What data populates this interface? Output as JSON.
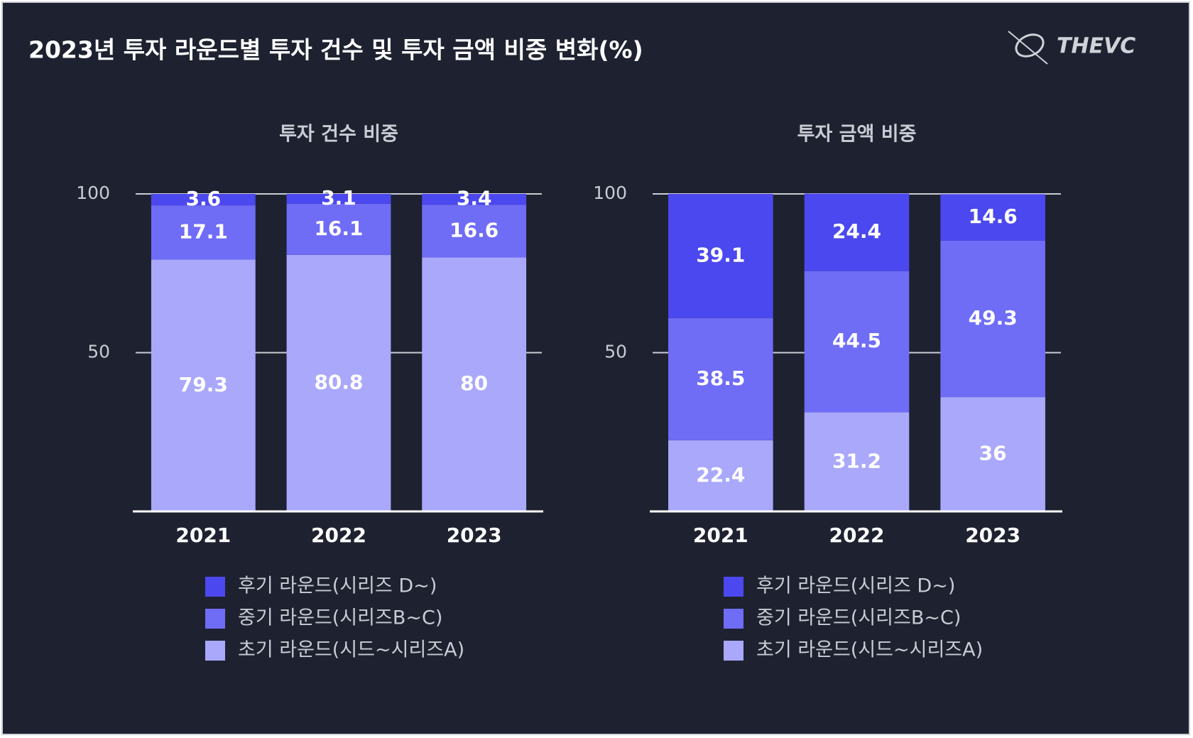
{
  "title": "2023년 투자 라운드별 투자 건수 및 투자 금액 비중 변화(%)",
  "logo": "THEVC",
  "chart_data": [
    {
      "type": "stacked_bar",
      "title": "투자 건수 비중",
      "categories": [
        "2021",
        "2022",
        "2023"
      ],
      "series": [
        {
          "name": "후기 라운드(시리즈 D~)",
          "color": "#4b48ef",
          "values": [
            3.6,
            3.1,
            3.4
          ]
        },
        {
          "name": "중기 라운드(시리즈B~C)",
          "color": "#6f6cf6",
          "values": [
            17.1,
            16.1,
            16.6
          ]
        },
        {
          "name": "초기 라운드(시드~시리즈A)",
          "color": "#a9a8fb",
          "values": [
            79.3,
            80.8,
            80
          ]
        }
      ],
      "ylim": [
        0,
        100
      ],
      "yticks": [
        50,
        100
      ],
      "grid": true
    },
    {
      "type": "stacked_bar",
      "title": "투자 금액 비중",
      "categories": [
        "2021",
        "2022",
        "2023"
      ],
      "series": [
        {
          "name": "후기 라운드(시리즈 D~)",
          "color": "#4b48ef",
          "values": [
            39.1,
            24.4,
            14.6
          ]
        },
        {
          "name": "중기 라운드(시리즈B~C)",
          "color": "#6f6cf6",
          "values": [
            38.5,
            44.5,
            49.3
          ]
        },
        {
          "name": "초기 라운드(시드~시리즈A)",
          "color": "#a9a8fb",
          "values": [
            22.4,
            31.2,
            36
          ]
        }
      ],
      "ylim": [
        0,
        100
      ],
      "yticks": [
        50,
        100
      ],
      "grid": true
    }
  ]
}
